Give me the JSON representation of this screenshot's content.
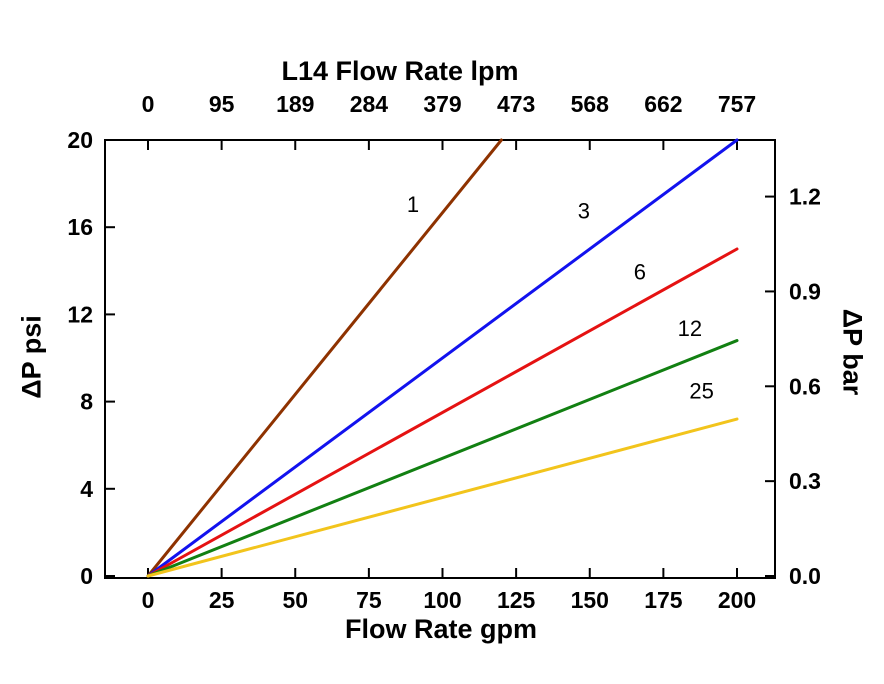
{
  "chart_data": {
    "type": "line",
    "top_axis": {
      "label": "L14 Flow Rate lpm",
      "ticks": [
        "0",
        "95",
        "189",
        "284",
        "379",
        "473",
        "568",
        "662",
        "757"
      ]
    },
    "bottom_axis": {
      "label": "Flow Rate gpm",
      "ticks": [
        "0",
        "25",
        "50",
        "75",
        "100",
        "125",
        "150",
        "175",
        "200"
      ],
      "range": [
        0,
        200
      ]
    },
    "left_axis": {
      "label": "ΔP psi",
      "ticks": [
        "0",
        "4",
        "8",
        "12",
        "16",
        "20"
      ],
      "range": [
        0,
        20
      ]
    },
    "right_axis": {
      "label": "ΔP bar",
      "ticks": [
        "0.0",
        "0.3",
        "0.6",
        "0.9",
        "1.2"
      ],
      "psi_per_bar": 14.5038
    },
    "grid": false,
    "legend": "inline-labels",
    "series": [
      {
        "name": "1",
        "color": "#8e3200",
        "points": [
          [
            0,
            0
          ],
          [
            120,
            20
          ]
        ],
        "label_pos": [
          90,
          16.7
        ]
      },
      {
        "name": "3",
        "color": "#1212ee",
        "points": [
          [
            0,
            0
          ],
          [
            200,
            20
          ]
        ],
        "label_pos": [
          148,
          16.4
        ]
      },
      {
        "name": "6",
        "color": "#e51212",
        "points": [
          [
            0,
            0
          ],
          [
            200,
            15
          ]
        ],
        "label_pos": [
          167,
          13.6
        ]
      },
      {
        "name": "12",
        "color": "#128012",
        "points": [
          [
            0,
            0
          ],
          [
            200,
            10.8
          ]
        ],
        "label_pos": [
          184,
          11.0
        ]
      },
      {
        "name": "25",
        "color": "#f2c41c",
        "points": [
          [
            0,
            0
          ],
          [
            200,
            7.2
          ]
        ],
        "label_pos": [
          188,
          8.15
        ]
      }
    ]
  }
}
